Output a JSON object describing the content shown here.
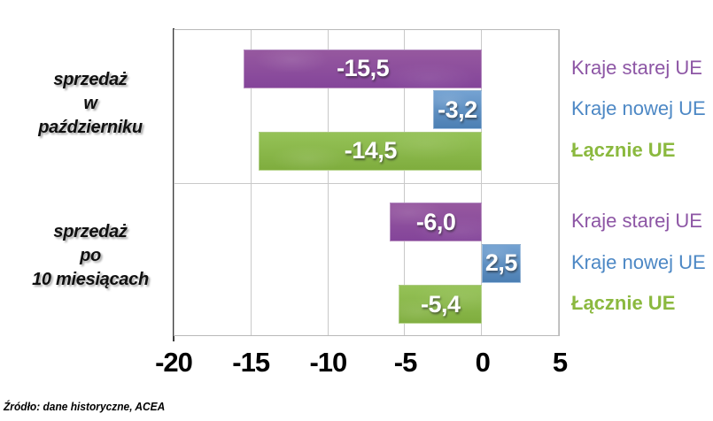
{
  "source": "Źródło: dane historyczne, ACEA",
  "chart_data": {
    "type": "bar",
    "orientation": "horizontal",
    "title": "",
    "xlabel": "",
    "ylabel": "",
    "xlim": [
      -20,
      5
    ],
    "x_ticks": [
      -20,
      -15,
      -10,
      -5,
      0,
      5
    ],
    "x_tick_labels": [
      "-20",
      "-15",
      "-10",
      "-5",
      "0",
      "5"
    ],
    "grid": true,
    "decimal_separator": ",",
    "groups": [
      {
        "id": "october",
        "label_lines": [
          "sprzedaż",
          "w",
          "październiku"
        ]
      },
      {
        "id": "ten-months",
        "label_lines": [
          "sprzedaż",
          "po",
          "10 miesiącach"
        ]
      }
    ],
    "series": [
      {
        "name": "Kraje starej UE",
        "color_class": "purple",
        "bar_color": "#8a4b9d",
        "legend_color": "#8d56a5",
        "legend_bold": false,
        "values": [
          -15.5,
          -6.0
        ],
        "value_labels": [
          "-15,5",
          "-6,0"
        ]
      },
      {
        "name": "Kraje nowej UE",
        "color_class": "blue",
        "bar_color": "#5b8fc3",
        "legend_color": "#4d88c5",
        "legend_bold": false,
        "values": [
          -3.2,
          2.5
        ],
        "value_labels": [
          "-3,2",
          "2,5"
        ]
      },
      {
        "name": "Łącznie UE",
        "color_class": "green",
        "bar_color": "#8ab94b",
        "legend_color": "#8bb93f",
        "legend_bold": true,
        "values": [
          -14.5,
          -5.4
        ],
        "value_labels": [
          "-14,5",
          "-5,4"
        ]
      }
    ],
    "legend": {
      "position": "right",
      "repeated_per_group": true
    }
  }
}
